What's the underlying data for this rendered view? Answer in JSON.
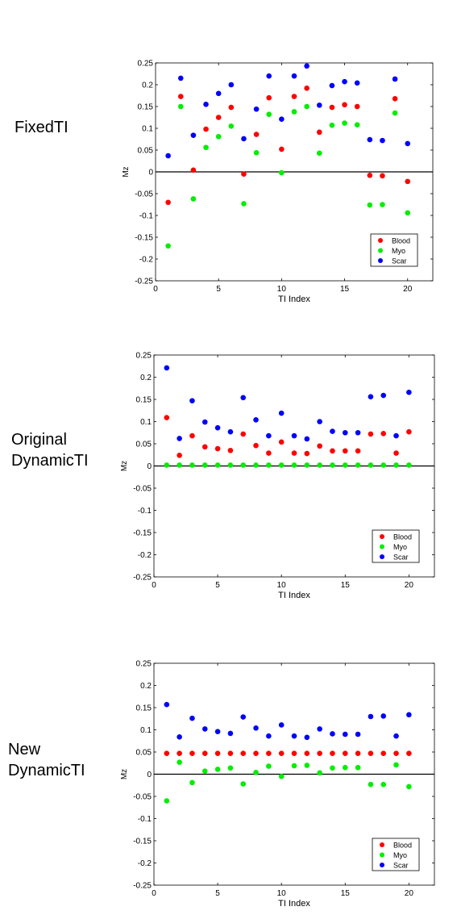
{
  "labels": [
    {
      "lines": [
        "FixedTI"
      ]
    },
    {
      "lines": [
        "Original",
        "DynamicTI"
      ]
    },
    {
      "lines": [
        "New",
        "DynamicTI"
      ]
    }
  ],
  "colors": {
    "Blood": "#ff0000",
    "Myo": "#00ee00",
    "Scar": "#0000ff"
  },
  "chart_data": [
    {
      "type": "scatter",
      "xlabel": "TI Index",
      "ylabel": "Mz",
      "xlim": [
        0,
        22
      ],
      "ylim": [
        -0.25,
        0.25
      ],
      "xticks": [
        0,
        5,
        10,
        15,
        20
      ],
      "yticks": [
        0.25,
        0.2,
        0.15,
        0.1,
        0.05,
        0,
        -0.05,
        -0.1,
        -0.15,
        -0.2,
        -0.25
      ],
      "ytick_labels": [
        "0.25",
        "0.2",
        "0.15",
        "0.1",
        "0.05",
        "0",
        "-0.05",
        "-0.1",
        "-0.15",
        "-0.2",
        "-0.25"
      ],
      "legend_position": "bottom-right",
      "zero_line": true,
      "x": [
        1,
        2,
        3,
        4,
        5,
        6,
        7,
        8,
        9,
        10,
        11,
        12,
        13,
        14,
        15,
        16,
        17,
        18,
        19,
        20
      ],
      "series": [
        {
          "name": "Blood",
          "values": [
            -0.07,
            0.173,
            0.004,
            0.098,
            0.125,
            0.148,
            -0.005,
            0.086,
            0.17,
            0.052,
            0.173,
            0.192,
            0.091,
            0.148,
            0.154,
            0.15,
            -0.008,
            -0.009,
            0.168,
            -0.022
          ]
        },
        {
          "name": "Myo",
          "values": [
            -0.17,
            0.15,
            -0.062,
            0.056,
            0.081,
            0.105,
            -0.073,
            0.044,
            0.132,
            -0.002,
            0.138,
            0.15,
            0.043,
            0.107,
            0.112,
            0.108,
            -0.076,
            -0.075,
            0.135,
            -0.094
          ]
        },
        {
          "name": "Scar",
          "values": [
            0.037,
            0.215,
            0.084,
            0.155,
            0.18,
            0.2,
            0.076,
            0.144,
            0.22,
            0.121,
            0.22,
            0.243,
            0.153,
            0.198,
            0.207,
            0.204,
            0.074,
            0.072,
            0.213,
            0.065
          ]
        }
      ]
    },
    {
      "type": "scatter",
      "xlabel": "TI Index",
      "ylabel": "Mz",
      "xlim": [
        0,
        22
      ],
      "ylim": [
        -0.25,
        0.25
      ],
      "xticks": [
        0,
        5,
        10,
        15,
        20
      ],
      "yticks": [
        0.25,
        0.2,
        0.15,
        0.1,
        0.05,
        0,
        -0.05,
        -0.1,
        -0.15,
        -0.2,
        -0.25
      ],
      "ytick_labels": [
        "0.25",
        "0.2",
        "0.15",
        "0.1",
        "0.05",
        "0",
        "-0.05",
        "-0.1",
        "-0.15",
        "-0.2",
        "-0.25"
      ],
      "legend_position": "bottom-right",
      "zero_line": true,
      "x": [
        1,
        2,
        3,
        4,
        5,
        6,
        7,
        8,
        9,
        10,
        11,
        12,
        13,
        14,
        15,
        16,
        17,
        18,
        19,
        20
      ],
      "series": [
        {
          "name": "Blood",
          "values": [
            0.109,
            0.024,
            0.068,
            0.043,
            0.039,
            0.035,
            0.072,
            0.046,
            0.029,
            0.054,
            0.029,
            0.028,
            0.045,
            0.034,
            0.034,
            0.034,
            0.072,
            0.073,
            0.029,
            0.077
          ]
        },
        {
          "name": "Myo",
          "values": [
            0.002,
            0.002,
            0.002,
            0.002,
            0.002,
            0.002,
            0.002,
            0.002,
            0.002,
            0.002,
            0.002,
            0.002,
            0.002,
            0.002,
            0.002,
            0.002,
            0.002,
            0.002,
            0.002,
            0.002
          ]
        },
        {
          "name": "Scar",
          "values": [
            0.221,
            0.062,
            0.147,
            0.099,
            0.086,
            0.077,
            0.154,
            0.104,
            0.068,
            0.119,
            0.068,
            0.061,
            0.1,
            0.078,
            0.075,
            0.075,
            0.156,
            0.159,
            0.068,
            0.166
          ]
        }
      ]
    },
    {
      "type": "scatter",
      "xlabel": "TI Index",
      "ylabel": "Mz",
      "xlim": [
        0,
        22
      ],
      "ylim": [
        -0.25,
        0.25
      ],
      "xticks": [
        0,
        5,
        10,
        15,
        20
      ],
      "yticks": [
        0.25,
        0.2,
        0.15,
        0.1,
        0.05,
        0,
        -0.05,
        -0.1,
        -0.15,
        -0.2,
        -0.25
      ],
      "ytick_labels": [
        "0.25",
        "0.2",
        "0.15",
        "0.1",
        "0.05",
        "0",
        "-0.05",
        "-0.1",
        "-0.15",
        "-0.2",
        "-0.25"
      ],
      "legend_position": "bottom-right",
      "zero_line": true,
      "x": [
        1,
        2,
        3,
        4,
        5,
        6,
        7,
        8,
        9,
        10,
        11,
        12,
        13,
        14,
        15,
        16,
        17,
        18,
        19,
        20
      ],
      "series": [
        {
          "name": "Blood",
          "values": [
            0.047,
            0.047,
            0.047,
            0.047,
            0.047,
            0.047,
            0.047,
            0.047,
            0.047,
            0.047,
            0.047,
            0.047,
            0.047,
            0.047,
            0.047,
            0.047,
            0.047,
            0.047,
            0.047,
            0.047
          ]
        },
        {
          "name": "Myo",
          "values": [
            -0.06,
            0.027,
            -0.019,
            0.007,
            0.011,
            0.014,
            -0.022,
            0.004,
            0.018,
            -0.005,
            0.019,
            0.02,
            0.003,
            0.014,
            0.015,
            0.015,
            -0.023,
            -0.023,
            0.021,
            -0.028
          ]
        },
        {
          "name": "Scar",
          "values": [
            0.157,
            0.084,
            0.126,
            0.102,
            0.096,
            0.092,
            0.129,
            0.104,
            0.086,
            0.111,
            0.086,
            0.083,
            0.102,
            0.091,
            0.09,
            0.09,
            0.13,
            0.131,
            0.086,
            0.134
          ]
        }
      ]
    }
  ]
}
